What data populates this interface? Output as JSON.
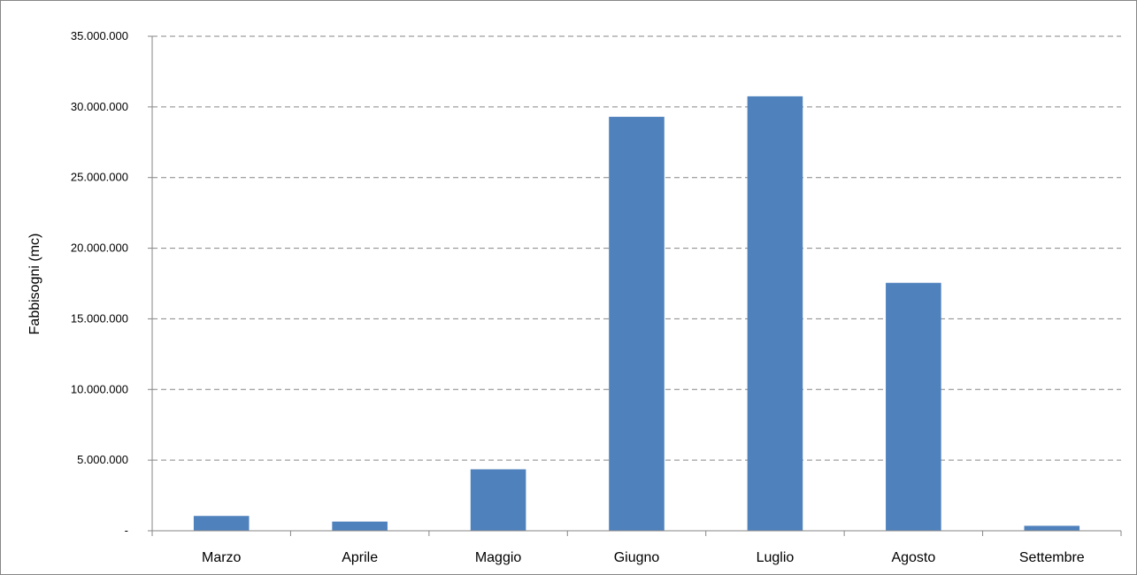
{
  "chart_data": {
    "type": "bar",
    "title": "",
    "xlabel": "",
    "ylabel": "Fabbisogni (mc)",
    "categories": [
      "Marzo",
      "Aprile",
      "Maggio",
      "Giugno",
      "Luglio",
      "Agosto",
      "Settembre"
    ],
    "values": [
      1050000,
      650000,
      4350000,
      29300000,
      30750000,
      17550000,
      350000
    ],
    "ylim": [
      0,
      35000000
    ],
    "yticks": [
      0,
      5000000,
      10000000,
      15000000,
      20000000,
      25000000,
      30000000,
      35000000
    ],
    "ytick_labels": [
      "-",
      "5.000.000",
      "10.000.000",
      "15.000.000",
      "20.000.000",
      "25.000.000",
      "30.000.000",
      "35.000.000"
    ],
    "grid": true,
    "grid_style": "dashed",
    "legend": "none",
    "bar_color": "#4F81BD",
    "grid_color": "#868686"
  }
}
